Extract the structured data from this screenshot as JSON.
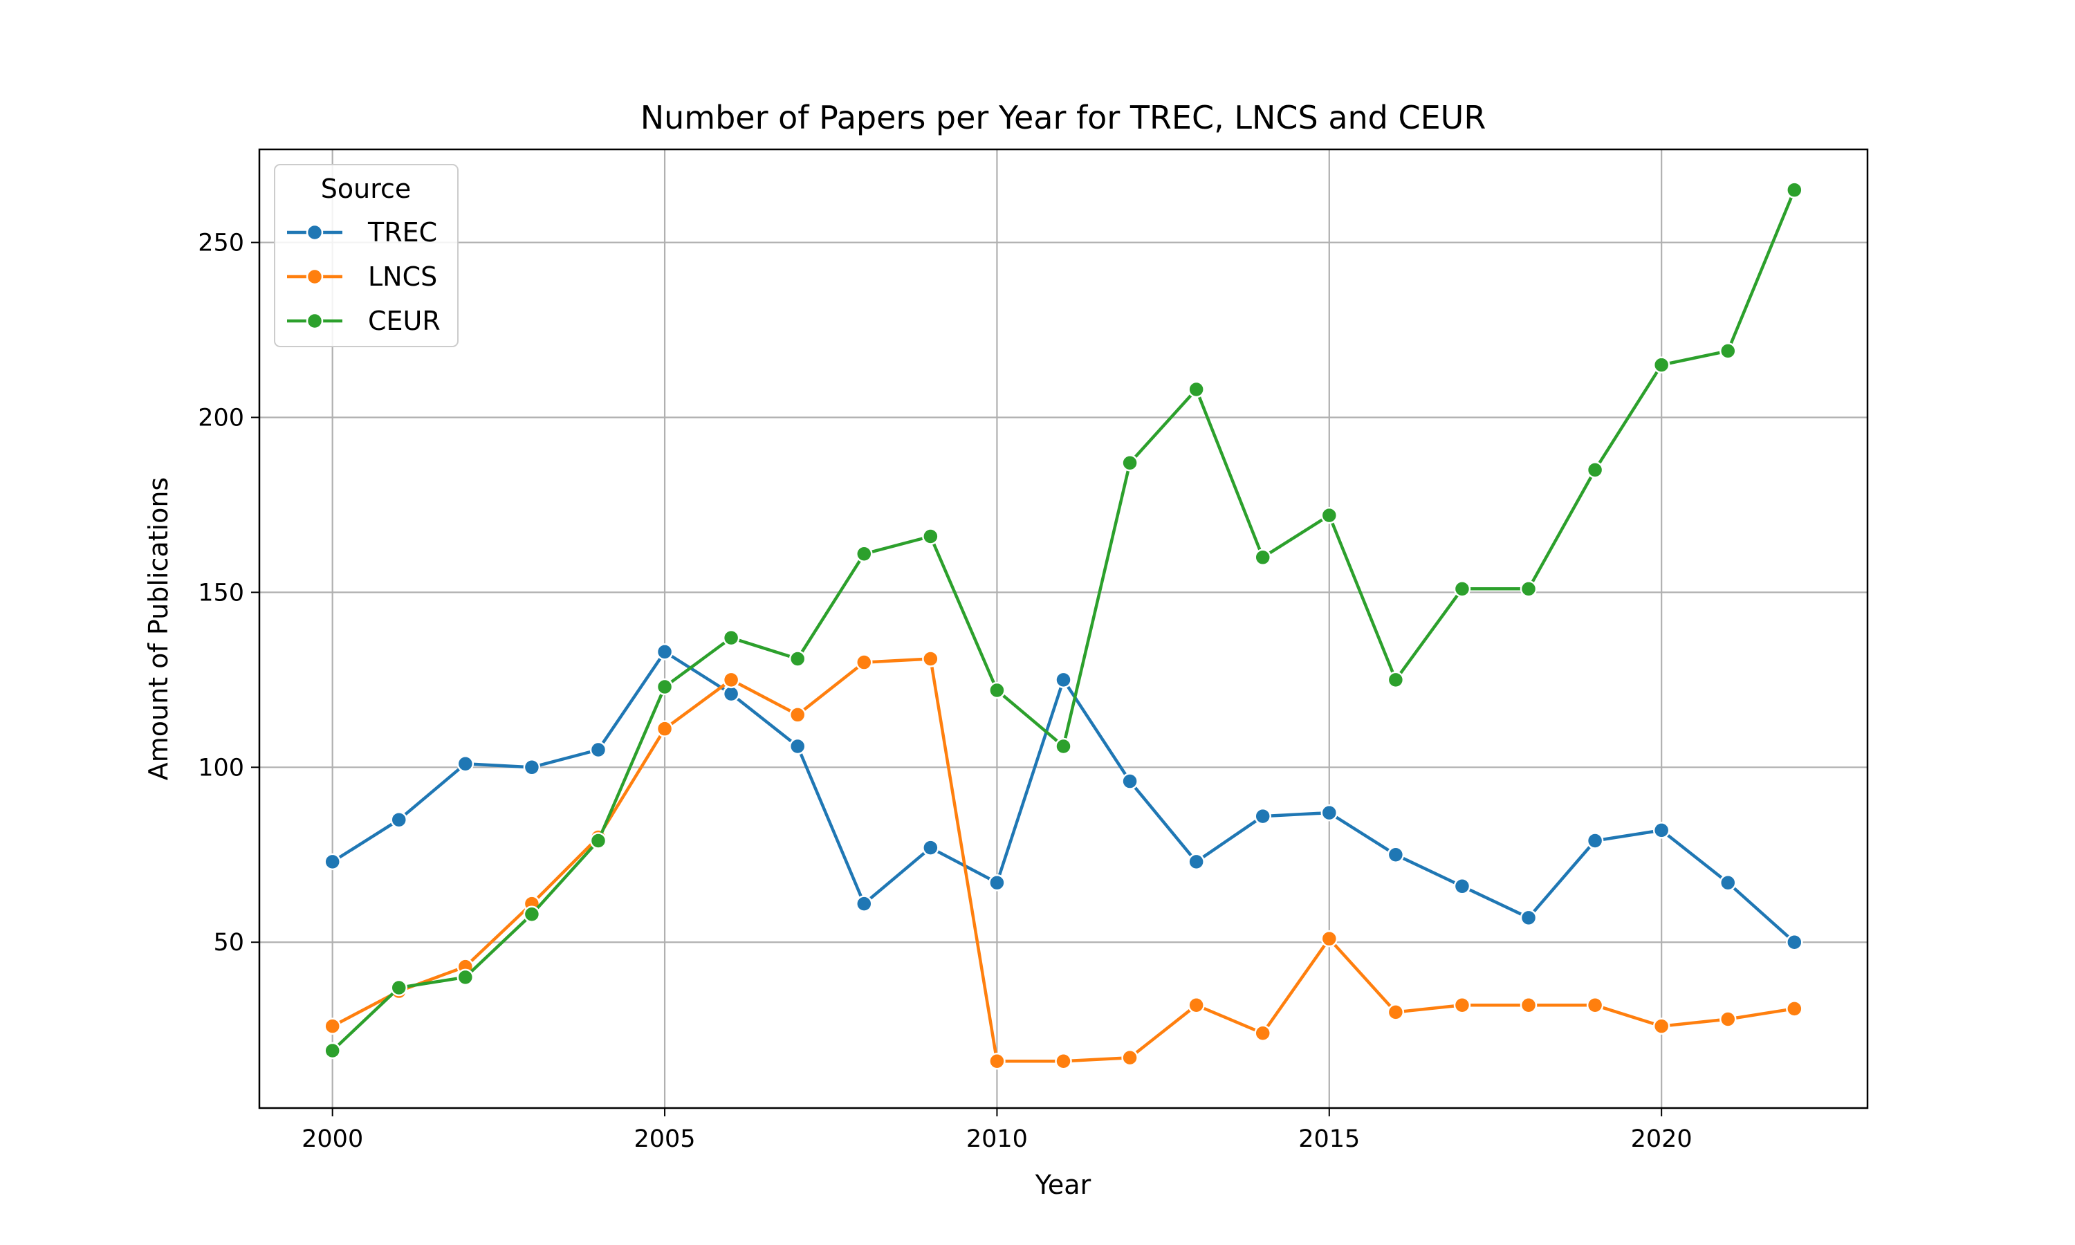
{
  "chart_data": {
    "type": "line",
    "title": "Number of Papers per Year for TREC, LNCS and CEUR",
    "xlabel": "Year",
    "ylabel": "Amount of Publications",
    "xlim": [
      1998.9,
      2023.1
    ],
    "ylim": [
      2.6,
      276.6
    ],
    "xticks": [
      2000,
      2005,
      2010,
      2015,
      2020
    ],
    "yticks": [
      50,
      100,
      150,
      200,
      250
    ],
    "grid": true,
    "legend": {
      "title": "Source",
      "placement": "top-left"
    },
    "x": [
      2000,
      2001,
      2002,
      2003,
      2004,
      2005,
      2006,
      2007,
      2008,
      2009,
      2010,
      2011,
      2012,
      2013,
      2014,
      2015,
      2016,
      2017,
      2018,
      2019,
      2020,
      2021,
      2022
    ],
    "series": [
      {
        "name": "TREC",
        "color": "#1f77b4",
        "values": [
          73,
          85,
          101,
          100,
          105,
          133,
          121,
          106,
          61,
          77,
          67,
          125,
          96,
          73,
          86,
          87,
          75,
          66,
          57,
          79,
          82,
          67,
          50
        ]
      },
      {
        "name": "LNCS",
        "color": "#ff7f0e",
        "values": [
          26,
          36,
          43,
          61,
          80,
          111,
          125,
          115,
          130,
          131,
          16,
          16,
          17,
          32,
          24,
          51,
          30,
          32,
          32,
          32,
          26,
          28,
          31
        ]
      },
      {
        "name": "CEUR",
        "color": "#2ca02c",
        "values": [
          19,
          37,
          40,
          58,
          79,
          123,
          137,
          131,
          161,
          166,
          122,
          106,
          187,
          208,
          160,
          172,
          125,
          151,
          151,
          185,
          215,
          219,
          265
        ]
      }
    ]
  }
}
